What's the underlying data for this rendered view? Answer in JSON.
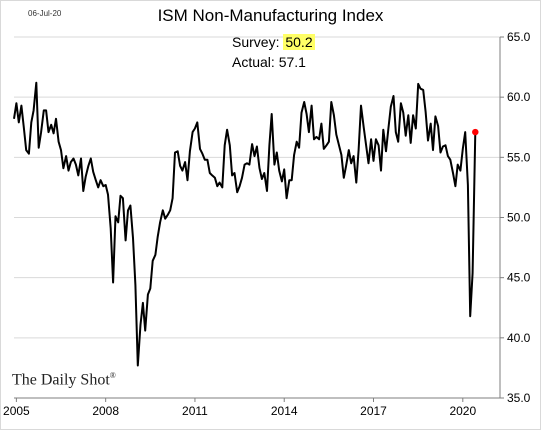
{
  "date_label": "06-Jul-20",
  "brand": "The Daily Shot",
  "brand_mark": "®",
  "colors": {
    "line": "#000000",
    "grid": "#d9d9d9",
    "marker": "#ff0000",
    "highlight": "#ffff66"
  },
  "annotation": {
    "survey_label": "Survey:",
    "survey_value": "50.2",
    "actual_label": "Actual:",
    "actual_value": "57.1"
  },
  "chart_data": {
    "type": "line",
    "title": "ISM Non-Manufacturing Index",
    "xlabel": "",
    "ylabel": "",
    "xlim": [
      2004.92,
      2021.25
    ],
    "ylim": [
      35.0,
      65.0
    ],
    "xticks": [
      2005,
      2008,
      2011,
      2014,
      2017,
      2020
    ],
    "xtick_labels": [
      "2005",
      "2008",
      "2011",
      "2014",
      "2017",
      "2020"
    ],
    "yticks": [
      35,
      40,
      45,
      50,
      55,
      60,
      65
    ],
    "ytick_labels": [
      "35.0",
      "40.0",
      "45.0",
      "50.0",
      "55.0",
      "60.0",
      "65.0"
    ],
    "grid": "horizontal",
    "y_axis_side": "right",
    "series": [
      {
        "x": [
          2004.92,
          2005.0,
          2005.08,
          2005.17,
          2005.25,
          2005.33,
          2005.42,
          2005.5,
          2005.58,
          2005.67,
          2005.75,
          2005.83,
          2005.92,
          2006.0,
          2006.08,
          2006.17,
          2006.25,
          2006.33,
          2006.42,
          2006.5,
          2006.58,
          2006.67,
          2006.75,
          2006.83,
          2006.92,
          2007.0,
          2007.08,
          2007.17,
          2007.25,
          2007.33,
          2007.42,
          2007.5,
          2007.58,
          2007.67,
          2007.75,
          2007.83,
          2007.92,
          2008.0,
          2008.08,
          2008.17,
          2008.25,
          2008.33,
          2008.42,
          2008.5,
          2008.58,
          2008.67,
          2008.75,
          2008.83,
          2008.92,
          2009.0,
          2009.08,
          2009.17,
          2009.25,
          2009.33,
          2009.42,
          2009.5,
          2009.58,
          2009.67,
          2009.75,
          2009.83,
          2009.92,
          2010.0,
          2010.08,
          2010.17,
          2010.25,
          2010.33,
          2010.42,
          2010.5,
          2010.58,
          2010.67,
          2010.75,
          2010.83,
          2010.92,
          2011.0,
          2011.08,
          2011.17,
          2011.25,
          2011.33,
          2011.42,
          2011.5,
          2011.58,
          2011.67,
          2011.75,
          2011.83,
          2011.92,
          2012.0,
          2012.08,
          2012.17,
          2012.25,
          2012.33,
          2012.42,
          2012.5,
          2012.58,
          2012.67,
          2012.75,
          2012.83,
          2012.92,
          2013.0,
          2013.08,
          2013.17,
          2013.25,
          2013.33,
          2013.42,
          2013.5,
          2013.58,
          2013.67,
          2013.75,
          2013.83,
          2013.92,
          2014.0,
          2014.08,
          2014.17,
          2014.25,
          2014.33,
          2014.42,
          2014.5,
          2014.58,
          2014.67,
          2014.75,
          2014.83,
          2014.92,
          2015.0,
          2015.08,
          2015.17,
          2015.25,
          2015.33,
          2015.42,
          2015.5,
          2015.58,
          2015.67,
          2015.75,
          2015.83,
          2015.92,
          2016.0,
          2016.08,
          2016.17,
          2016.25,
          2016.33,
          2016.42,
          2016.5,
          2016.58,
          2016.67,
          2016.75,
          2016.83,
          2016.92,
          2017.0,
          2017.08,
          2017.17,
          2017.25,
          2017.33,
          2017.42,
          2017.5,
          2017.58,
          2017.67,
          2017.75,
          2017.83,
          2017.92,
          2018.0,
          2018.08,
          2018.17,
          2018.25,
          2018.33,
          2018.42,
          2018.5,
          2018.58,
          2018.67,
          2018.75,
          2018.83,
          2018.92,
          2019.0,
          2019.08,
          2019.17,
          2019.25,
          2019.33,
          2019.42,
          2019.5,
          2019.58,
          2019.67,
          2019.75,
          2019.83,
          2019.92,
          2020.0,
          2020.08,
          2020.17,
          2020.25,
          2020.33,
          2020.42
        ],
        "y": [
          58.2,
          59.5,
          57.9,
          59.3,
          57.5,
          55.6,
          55.3,
          57.9,
          58.9,
          61.2,
          55.8,
          57.1,
          58.9,
          58.9,
          57.1,
          57.7,
          57.0,
          58.2,
          56.3,
          55.6,
          54.1,
          55.1,
          53.9,
          54.6,
          54.9,
          54.4,
          53.5,
          54.9,
          52.2,
          53.4,
          54.3,
          54.9,
          53.8,
          53.1,
          52.5,
          53.1,
          52.6,
          52.7,
          51.9,
          49.1,
          44.6,
          50.1,
          49.6,
          51.8,
          51.6,
          48.1,
          50.6,
          51.0,
          48.3,
          44.4,
          37.7,
          41.1,
          42.9,
          40.6,
          43.6,
          44.1,
          46.4,
          46.9,
          48.4,
          49.6,
          50.6,
          49.9,
          50.2,
          50.6,
          51.6,
          55.4,
          55.5,
          54.3,
          53.9,
          54.6,
          53.1,
          55.5,
          57.1,
          57.4,
          57.9,
          55.7,
          55.3,
          54.8,
          54.8,
          53.7,
          53.5,
          53.3,
          52.6,
          52.9,
          52.5,
          56.0,
          57.3,
          56.0,
          53.5,
          53.7,
          52.1,
          52.6,
          53.3,
          54.4,
          54.5,
          54.4,
          56.1,
          55.1,
          55.9,
          54.1,
          53.2,
          53.7,
          52.2,
          56.0,
          58.6,
          54.4,
          55.4,
          53.9,
          53.0,
          54.0,
          51.6,
          53.1,
          53.1,
          55.2,
          56.3,
          55.8,
          58.7,
          59.6,
          58.6,
          57.1,
          59.3,
          56.5,
          56.7,
          56.5,
          57.8,
          55.7,
          56.0,
          56.3,
          59.6,
          58.5,
          56.9,
          56.1,
          55.2,
          53.3,
          54.3,
          55.6,
          54.5,
          55.1,
          52.9,
          55.6,
          59.3,
          57.5,
          56.0,
          54.5,
          56.5,
          54.7,
          56.5,
          56.0,
          53.9,
          57.3,
          55.5,
          57.4,
          59.2,
          60.1,
          57.1,
          56.3,
          59.5,
          58.7,
          56.8,
          58.5,
          56.2,
          58.5,
          57.4,
          61.1,
          60.7,
          60.6,
          58.8,
          56.4,
          57.8,
          55.6,
          58.4,
          57.6,
          55.4,
          55.9,
          56.0,
          55.1,
          54.8,
          53.7,
          52.6,
          54.4,
          53.9,
          55.7,
          57.1,
          52.7,
          41.8,
          45.4,
          57.1
        ]
      }
    ],
    "marker_point": {
      "x": 2020.42,
      "y": 57.1
    }
  }
}
